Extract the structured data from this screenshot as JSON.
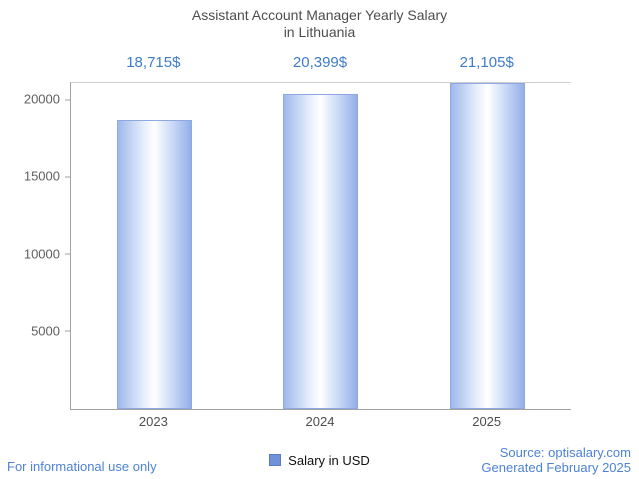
{
  "title": {
    "line1": "Assistant Account Manager Yearly Salary",
    "line2": "in Lithuania"
  },
  "chart_data": {
    "type": "bar",
    "title": "Assistant Account Manager Yearly Salary in Lithuania",
    "categories": [
      "2023",
      "2024",
      "2025"
    ],
    "values": [
      18715,
      20399,
      21105
    ],
    "value_labels": [
      "18,715$",
      "20,399$",
      "21,105$"
    ],
    "xlabel": "",
    "ylabel": "",
    "ylim": [
      0,
      21105
    ],
    "yticks": [
      5000,
      10000,
      15000,
      20000
    ],
    "grid": false,
    "legend": [
      "Salary in USD"
    ],
    "legend_position": "bottom",
    "bar_color": "#9fb8ec",
    "bar_border_color": "#8ea9e2",
    "value_label_color": "#3e7cc9"
  },
  "legend": {
    "label": "Salary in USD",
    "swatch_color": "#7191d8"
  },
  "footer": {
    "left": "For informational use only",
    "source": "Source: optisalary.com",
    "generated": "Generated February 2025"
  }
}
